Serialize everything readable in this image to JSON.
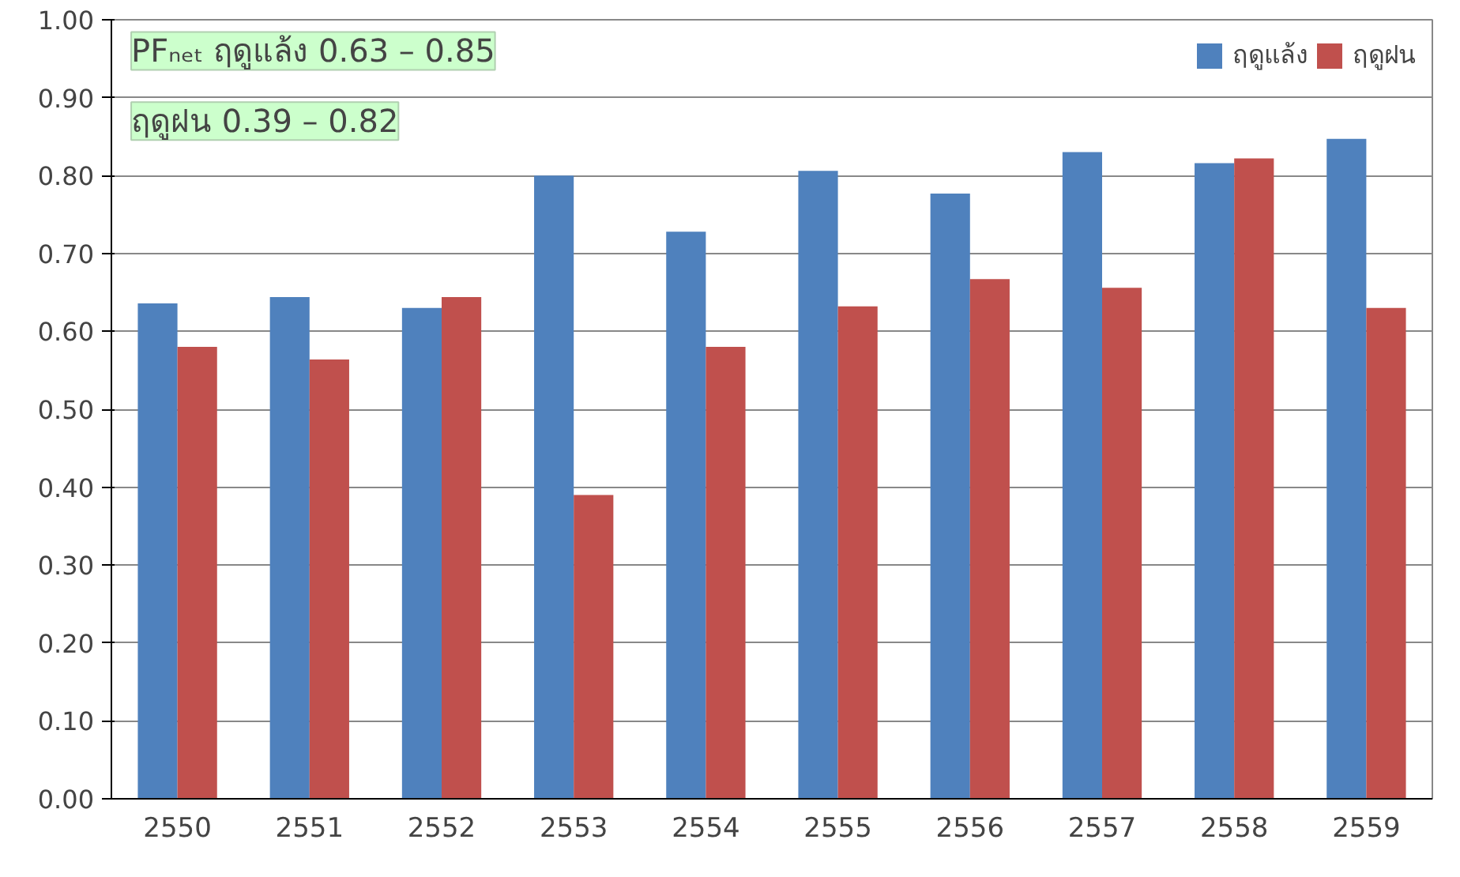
{
  "chart_data": {
    "type": "bar",
    "categories": [
      "2550",
      "2551",
      "2552",
      "2553",
      "2554",
      "2555",
      "2556",
      "2557",
      "2558",
      "2559"
    ],
    "series": [
      {
        "name": "ฤดูแล้ง",
        "color": "#4f81bd",
        "values": [
          0.636,
          0.644,
          0.63,
          0.8,
          0.728,
          0.806,
          0.777,
          0.83,
          0.816,
          0.847
        ]
      },
      {
        "name": "ฤดูฝน",
        "color": "#c0504d",
        "values": [
          0.58,
          0.564,
          0.644,
          0.39,
          0.58,
          0.632,
          0.667,
          0.656,
          0.822,
          0.63
        ]
      }
    ],
    "ylim": [
      0,
      1
    ],
    "yticks": [
      {
        "value": 0,
        "label": "0.00"
      },
      {
        "value": 0.1,
        "label": "0.10"
      },
      {
        "value": 0.2,
        "label": "0.20"
      },
      {
        "value": 0.3,
        "label": "0.30"
      },
      {
        "value": 0.4,
        "label": "0.40"
      },
      {
        "value": 0.5,
        "label": "0.50"
      },
      {
        "value": 0.6,
        "label": "0.60"
      },
      {
        "value": 0.7,
        "label": "0.70"
      },
      {
        "value": 0.8,
        "label": "0.80"
      },
      {
        "value": 0.9,
        "label": "0.90"
      },
      {
        "value": 1,
        "label": "1.00"
      }
    ],
    "annotations": [
      "PFₙₑₜ ฤดูแล้ง 0.63 – 0.85",
      "ฤดูฝน 0.39 – 0.82"
    ],
    "grid": "y",
    "legend": "top right"
  }
}
